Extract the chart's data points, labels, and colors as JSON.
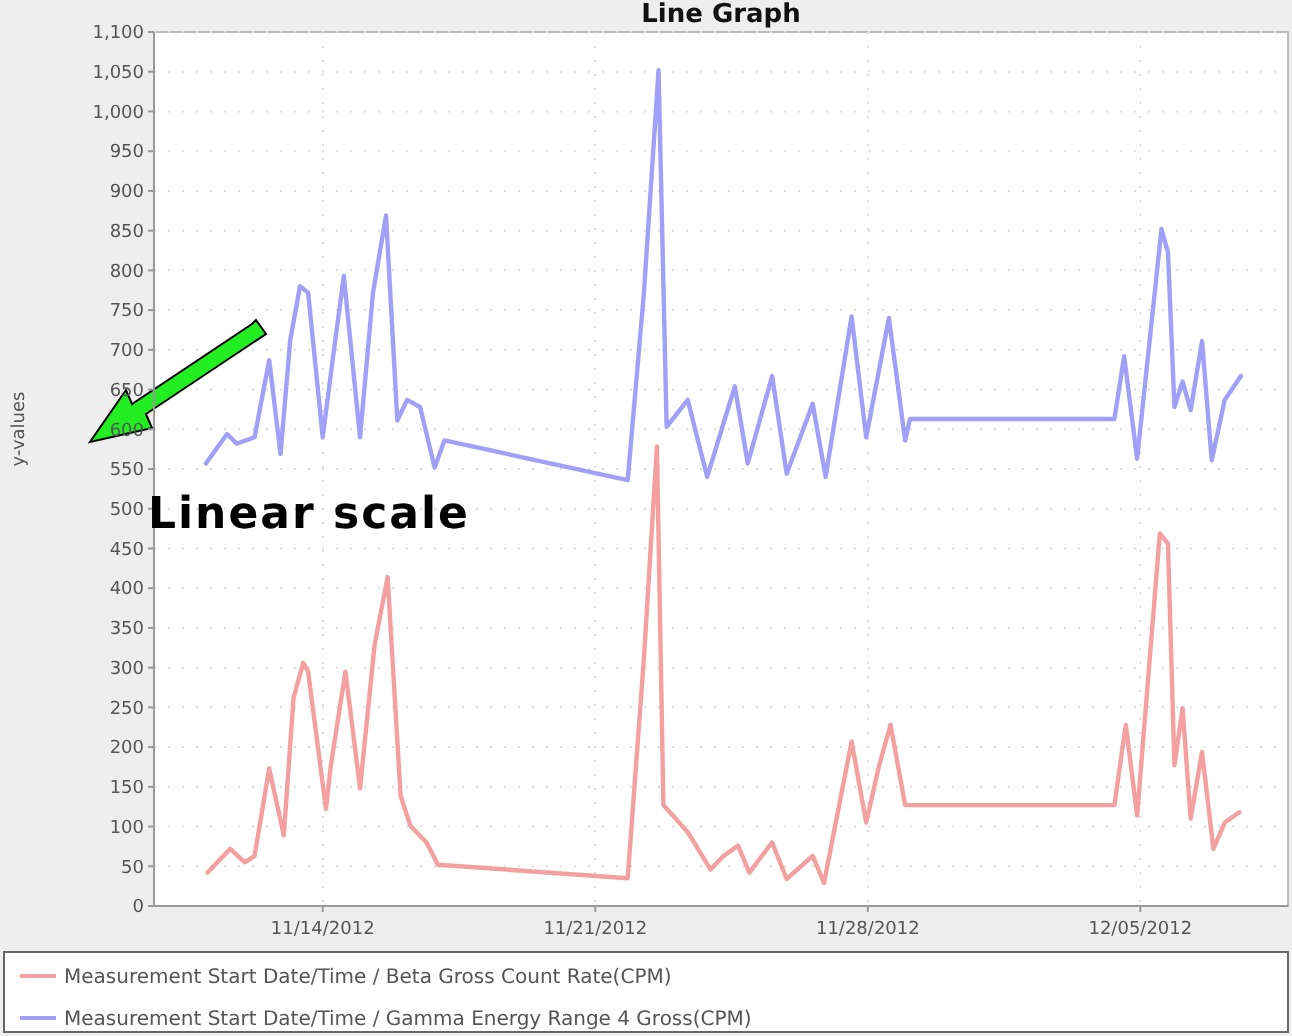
{
  "chart_data": {
    "type": "line",
    "title": "Line Graph",
    "ylabel": "y-values",
    "annotations": [
      "Linear scale"
    ],
    "xlim": [
      "2012-11-09T16:00",
      "2012-12-08T19:00"
    ],
    "xticks": [
      {
        "value": "2012-11-14",
        "label": "11/14/2012"
      },
      {
        "value": "2012-11-21",
        "label": "11/21/2012"
      },
      {
        "value": "2012-11-28",
        "label": "11/28/2012"
      },
      {
        "value": "2012-12-05",
        "label": "12/05/2012"
      }
    ],
    "ylim": [
      0,
      1100
    ],
    "yticks": [
      0,
      50,
      100,
      150,
      200,
      250,
      300,
      350,
      400,
      450,
      500,
      550,
      600,
      650,
      700,
      750,
      800,
      850,
      900,
      950,
      {
        "value": 1000,
        "label": "1,000"
      },
      {
        "value": 1050,
        "label": "1,050"
      },
      {
        "value": 1100,
        "label": "1,100"
      }
    ],
    "grid": true,
    "legend": "bottom",
    "marker": "none",
    "line_style": "solid",
    "series": [
      {
        "name": "Measurement Start Date/Time / Beta Gross Count Rate(CPM)",
        "color": "#f4a0a0",
        "x": [
          "2012-11-11T01:00",
          "2012-11-11T15:00",
          "2012-11-12T00:00",
          "2012-11-12T06:00",
          "2012-11-12T15:00",
          "2012-11-13T00:00",
          "2012-11-13T06:00",
          "2012-11-13T12:00",
          "2012-11-13T15:00",
          "2012-11-14T02:00",
          "2012-11-14T05:00",
          "2012-11-14T14:00",
          "2012-11-14T23:00",
          "2012-11-15T08:00",
          "2012-11-15T16:00",
          "2012-11-16T00:00",
          "2012-11-16T06:00",
          "2012-11-16T16:00",
          "2012-11-16T23:00",
          "2012-11-21T20:00",
          "2012-11-22T06:00",
          "2012-11-22T14:00",
          "2012-11-22T18:00",
          "2012-11-23T09:00",
          "2012-11-23T23:00",
          "2012-11-24T07:00",
          "2012-11-24T16:00",
          "2012-11-24T23:00",
          "2012-11-25T13:00",
          "2012-11-25T22:00",
          "2012-11-26T14:00",
          "2012-11-26T21:00",
          "2012-11-27T14:00",
          "2012-11-27T23:00",
          "2012-11-28T07:00",
          "2012-11-28T14:00",
          "2012-11-28T23:00",
          "2012-12-04T08:00",
          "2012-12-04T15:00",
          "2012-12-04T22:00",
          "2012-12-05T12:00",
          "2012-12-05T17:00",
          "2012-12-05T21:00",
          "2012-12-06T02:00",
          "2012-12-06T07:00",
          "2012-12-06T14:00",
          "2012-12-06T21:00",
          "2012-12-07T04:00",
          "2012-12-07T13:00"
        ],
        "values": [
          42,
          72,
          55,
          63,
          173,
          89,
          262,
          306,
          295,
          122,
          177,
          295,
          148,
          329,
          414,
          139,
          101,
          80,
          52,
          35,
          312,
          578,
          127,
          93,
          46,
          63,
          76,
          42,
          80,
          34,
          63,
          29,
          207,
          105,
          177,
          228,
          127,
          127,
          228,
          114,
          469,
          456,
          177,
          249,
          110,
          194,
          72,
          105,
          118
        ]
      },
      {
        "name": "Measurement Start Date/Time / Gamma Energy Range 4 Gross(CPM)",
        "color": "#a0a0f8",
        "x": [
          "2012-11-11T00:00",
          "2012-11-11T13:00",
          "2012-11-11T19:00",
          "2012-11-12T06:00",
          "2012-11-12T15:00",
          "2012-11-12T22:00",
          "2012-11-13T04:00",
          "2012-11-13T10:00",
          "2012-11-13T15:00",
          "2012-11-14T00:00",
          "2012-11-14T05:00",
          "2012-11-14T13:00",
          "2012-11-14T23:00",
          "2012-11-15T07:00",
          "2012-11-15T15:00",
          "2012-11-15T22:00",
          "2012-11-16T04:00",
          "2012-11-16T12:00",
          "2012-11-16T21:00",
          "2012-11-17T03:00",
          "2012-11-21T20:00",
          "2012-11-22T06:00",
          "2012-11-22T15:00",
          "2012-11-22T20:00",
          "2012-11-23T09:00",
          "2012-11-23T21:00",
          "2012-11-24T14:00",
          "2012-11-24T22:00",
          "2012-11-25T13:00",
          "2012-11-25T22:00",
          "2012-11-26T14:00",
          "2012-11-26T22:00",
          "2012-11-27T14:00",
          "2012-11-27T23:00",
          "2012-11-28T13:00",
          "2012-11-28T23:00",
          "2012-11-29T02:00",
          "2012-12-04T08:00",
          "2012-12-04T14:00",
          "2012-12-04T22:00",
          "2012-12-05T13:00",
          "2012-12-05T17:00",
          "2012-12-05T21:00",
          "2012-12-06T02:00",
          "2012-12-06T07:00",
          "2012-12-06T14:00",
          "2012-12-06T20:00",
          "2012-12-07T04:00",
          "2012-12-07T14:00"
        ],
        "values": [
          557,
          594,
          582,
          590,
          687,
          569,
          713,
          780,
          772,
          590,
          670,
          793,
          590,
          772,
          869,
          611,
          637,
          628,
          552,
          586,
          536,
          772,
          1052,
          603,
          637,
          540,
          654,
          557,
          667,
          544,
          632,
          540,
          742,
          590,
          740,
          586,
          613,
          613,
          692,
          563,
          852,
          823,
          628,
          660,
          624,
          711,
          561,
          637,
          667
        ]
      }
    ]
  }
}
